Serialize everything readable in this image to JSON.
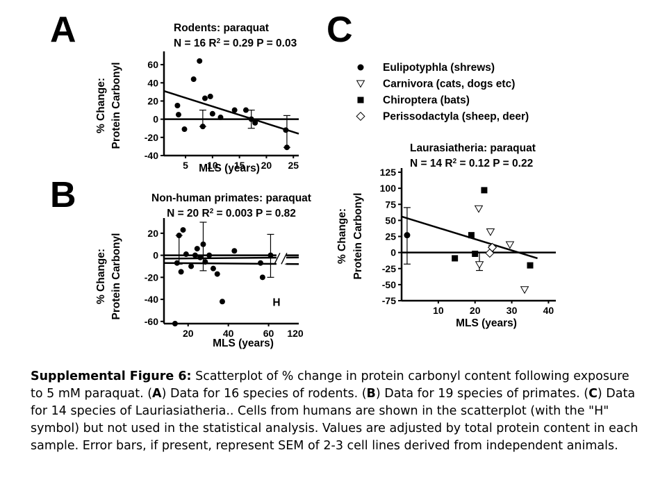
{
  "panel_letters": {
    "a": "A",
    "b": "B",
    "c": "C"
  },
  "chart_data": [
    {
      "id": "A",
      "type": "scatter",
      "title": "Rodents: paraquat",
      "subtitle_parts": [
        "N = 16 R",
        "2",
        " = 0.29 P = 0.03"
      ],
      "xlabel": "MLS (years)",
      "ylabel": [
        "% Change:",
        "Protein Carbonyl"
      ],
      "xlim": [
        1,
        26
      ],
      "ylim": [
        -40,
        70
      ],
      "xticks": [
        5,
        10,
        15,
        20,
        25
      ],
      "yticks": [
        -40,
        -20,
        0,
        20,
        40,
        60
      ],
      "points": [
        {
          "x": 3.5,
          "y": 15,
          "m": "circle"
        },
        {
          "x": 3.7,
          "y": 5,
          "m": "circle"
        },
        {
          "x": 4.8,
          "y": -11,
          "m": "circle"
        },
        {
          "x": 6.5,
          "y": 44,
          "m": "circle"
        },
        {
          "x": 7.6,
          "y": 64,
          "m": "circle"
        },
        {
          "x": 8.2,
          "y": -8,
          "m": "circle"
        },
        {
          "x": 8.6,
          "y": 23,
          "m": "circle"
        },
        {
          "x": 9.6,
          "y": 25,
          "m": "circle"
        },
        {
          "x": 10.0,
          "y": 6,
          "m": "circle"
        },
        {
          "x": 11.5,
          "y": 2,
          "m": "circle"
        },
        {
          "x": 14.1,
          "y": 10,
          "m": "circle"
        },
        {
          "x": 16.2,
          "y": 10,
          "m": "circle"
        },
        {
          "x": 17.2,
          "y": 0,
          "m": "circle"
        },
        {
          "x": 17.9,
          "y": -4,
          "m": "circle"
        },
        {
          "x": 23.6,
          "y": -12,
          "m": "circle"
        },
        {
          "x": 23.8,
          "y": -31,
          "m": "circle"
        }
      ],
      "error_bars": [
        {
          "x": 8.2,
          "lo": -8,
          "hi": 10
        },
        {
          "x": 17.2,
          "lo": -10,
          "hi": 10
        },
        {
          "x": 23.8,
          "lo": -31,
          "hi": 4
        }
      ],
      "fit_line": [
        [
          1,
          31
        ],
        [
          26,
          -16
        ]
      ],
      "zero_line": true
    },
    {
      "id": "B",
      "type": "scatter",
      "title": "Non-human primates: paraquat",
      "subtitle_parts": [
        "N = 20 R",
        "2",
        " = 0.003 P = 0.82"
      ],
      "xlabel": "MLS (years)",
      "ylabel": [
        "% Change:",
        "Protein Carbonyl"
      ],
      "xlim": [
        8,
        75
      ],
      "ylim": [
        -62,
        30
      ],
      "xticks": [
        20,
        40,
        60
      ],
      "xtick_extra": "120",
      "yticks": [
        -60,
        -40,
        -20,
        0,
        20
      ],
      "annotation": "H",
      "points": [
        {
          "x": 13.5,
          "y": -62,
          "m": "circle"
        },
        {
          "x": 14.5,
          "y": -7,
          "m": "circle"
        },
        {
          "x": 15.5,
          "y": 18,
          "m": "circle"
        },
        {
          "x": 16.5,
          "y": -15,
          "m": "circle"
        },
        {
          "x": 17.5,
          "y": 23,
          "m": "circle"
        },
        {
          "x": 19,
          "y": 1,
          "m": "circle"
        },
        {
          "x": 21.5,
          "y": -10,
          "m": "circle"
        },
        {
          "x": 23.5,
          "y": 0,
          "m": "circle"
        },
        {
          "x": 24.5,
          "y": 6,
          "m": "circle"
        },
        {
          "x": 26,
          "y": -2,
          "m": "circle"
        },
        {
          "x": 27.5,
          "y": 10,
          "m": "circle"
        },
        {
          "x": 28.5,
          "y": -6,
          "m": "circle"
        },
        {
          "x": 30.5,
          "y": 0,
          "m": "circle"
        },
        {
          "x": 32.5,
          "y": -12,
          "m": "circle"
        },
        {
          "x": 34.5,
          "y": -17,
          "m": "circle"
        },
        {
          "x": 37,
          "y": -42,
          "m": "circle"
        },
        {
          "x": 43,
          "y": 4,
          "m": "circle"
        },
        {
          "x": 56,
          "y": -7,
          "m": "circle"
        },
        {
          "x": 57,
          "y": -20,
          "m": "circle"
        },
        {
          "x": 61,
          "y": 0,
          "m": "circle"
        }
      ],
      "error_bars": [
        {
          "x": 15.5,
          "lo": -8,
          "hi": 18
        },
        {
          "x": 27.5,
          "lo": -14,
          "hi": 30
        },
        {
          "x": 61,
          "lo": -20,
          "hi": 19
        }
      ],
      "fit_lines": [
        [
          [
            8,
            -7
          ],
          [
            75,
            -8
          ]
        ],
        [
          [
            8,
            -3
          ],
          [
            75,
            -2
          ]
        ]
      ],
      "zero_line": true
    },
    {
      "id": "C",
      "type": "scatter",
      "title": "Laurasiatheria: paraquat",
      "subtitle_parts": [
        "N = 14 R",
        "2",
        " = 0.12 P = 0.22"
      ],
      "xlabel": "MLS (years)",
      "ylabel": [
        "% Change:",
        "Protein Carbonyl"
      ],
      "xlim": [
        0,
        42
      ],
      "ylim": [
        -75,
        125
      ],
      "xticks": [
        10,
        20,
        30,
        40
      ],
      "yticks": [
        -75,
        -50,
        -25,
        0,
        25,
        50,
        75,
        100,
        125
      ],
      "legend": [
        {
          "label": "Eulipotyphla (shrews)",
          "m": "circle"
        },
        {
          "label": "Carnivora (cats, dogs etc)",
          "m": "triangle"
        },
        {
          "label": "Chiroptera (bats)",
          "m": "square"
        },
        {
          "label": "Perissodactyla (sheep, deer)",
          "m": "diamond"
        }
      ],
      "points": [
        {
          "x": 1.5,
          "y": 27,
          "m": "circle"
        },
        {
          "x": 14.5,
          "y": -9,
          "m": "square"
        },
        {
          "x": 19,
          "y": 27,
          "m": "square"
        },
        {
          "x": 20,
          "y": -2,
          "m": "square"
        },
        {
          "x": 22.5,
          "y": 97,
          "m": "square"
        },
        {
          "x": 35,
          "y": -20,
          "m": "square"
        },
        {
          "x": 21,
          "y": 68,
          "m": "triangle"
        },
        {
          "x": 21.2,
          "y": -19,
          "m": "triangle"
        },
        {
          "x": 24.2,
          "y": 32,
          "m": "triangle"
        },
        {
          "x": 24.8,
          "y": 6,
          "m": "triangle"
        },
        {
          "x": 29.5,
          "y": 12,
          "m": "triangle"
        },
        {
          "x": 33.5,
          "y": -58,
          "m": "triangle"
        },
        {
          "x": 24,
          "y": -1,
          "m": "diamond"
        },
        {
          "x": 24.7,
          "y": 8,
          "m": "diamond"
        }
      ],
      "error_bars": [
        {
          "x": 1.5,
          "lo": -18,
          "hi": 70
        },
        {
          "x": 21.2,
          "lo": -28,
          "hi": 0
        }
      ],
      "fit_line": [
        [
          0,
          56
        ],
        [
          37,
          -9
        ]
      ],
      "zero_line": true
    }
  ],
  "caption": {
    "label": "Supplemental Figure 6:",
    "segments": [
      {
        "t": " Scatterplot of % change in protein carbonyl content following exposure to 5 mM paraquat. (",
        "b": false
      },
      {
        "t": "A",
        "b": true
      },
      {
        "t": ") Data for 16 species of rodents. (",
        "b": false
      },
      {
        "t": "B",
        "b": true
      },
      {
        "t": ") Data for 19 species of primates. (",
        "b": false
      },
      {
        "t": "C",
        "b": true
      },
      {
        "t": ") Data for 14 species of Lauriasiatheria.. Cells from humans are shown in the scatterplot  (with the \"H\" symbol)  but not used in the statistical analysis. Values are adjusted by total protein content in each sample.  Error bars, if present, represent SEM of 2-3 cell lines derived from independent animals.",
        "b": false
      }
    ]
  }
}
